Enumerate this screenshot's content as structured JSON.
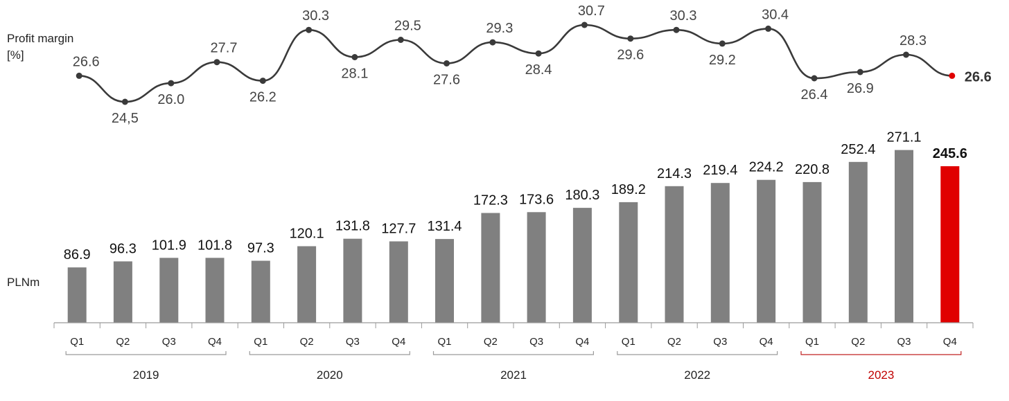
{
  "chart_data": {
    "type": "bar",
    "margin_label": "Profit margin",
    "margin_unit": "[%]",
    "bar_unit": "PLNm",
    "quarters": [
      "Q1",
      "Q2",
      "Q3",
      "Q4",
      "Q1",
      "Q2",
      "Q3",
      "Q4",
      "Q1",
      "Q2",
      "Q3",
      "Q4",
      "Q1",
      "Q2",
      "Q3",
      "Q4",
      "Q1",
      "Q2",
      "Q3",
      "Q4"
    ],
    "years": [
      {
        "label": "2019",
        "highlight": false
      },
      {
        "label": "2020",
        "highlight": false
      },
      {
        "label": "2021",
        "highlight": false
      },
      {
        "label": "2022",
        "highlight": false
      },
      {
        "label": "2023",
        "highlight": true
      }
    ],
    "bar_values": [
      86.9,
      96.3,
      101.9,
      101.8,
      97.3,
      120.1,
      131.8,
      127.7,
      131.4,
      172.3,
      173.6,
      180.3,
      189.2,
      214.3,
      219.4,
      224.2,
      220.8,
      252.4,
      271.1,
      245.6
    ],
    "bar_labels": [
      "86.9",
      "96.3",
      "101.9",
      "101.8",
      "97.3",
      "120.1",
      "131.8",
      "127.7",
      "131.4",
      "172.3",
      "173.6",
      "180.3",
      "189.2",
      "214.3",
      "219.4",
      "224.2",
      "220.8",
      "252.4",
      "271.1",
      "245.6"
    ],
    "margin_values": [
      26.6,
      24.5,
      26.0,
      27.7,
      26.2,
      30.3,
      28.1,
      29.5,
      27.6,
      29.3,
      28.4,
      30.7,
      29.6,
      30.3,
      29.2,
      30.4,
      26.4,
      26.9,
      28.3,
      26.6
    ],
    "margin_labels": [
      "26.6",
      "24,5",
      "26.0",
      "27.7",
      "26.2",
      "30.3",
      "28.1",
      "29.5",
      "27.6",
      "29.3",
      "28.4",
      "30.7",
      "29.6",
      "30.3",
      "29.2",
      "30.4",
      "26.4",
      "26.9",
      "28.3",
      "26.6"
    ],
    "colors": {
      "bar": "#808080",
      "highlight": "#e00000",
      "line": "#3a3a3a",
      "axis": "#9a9a9a",
      "text": "#222222",
      "year_highlight": "#c00000",
      "bracket_highlight": "#c02020"
    }
  }
}
